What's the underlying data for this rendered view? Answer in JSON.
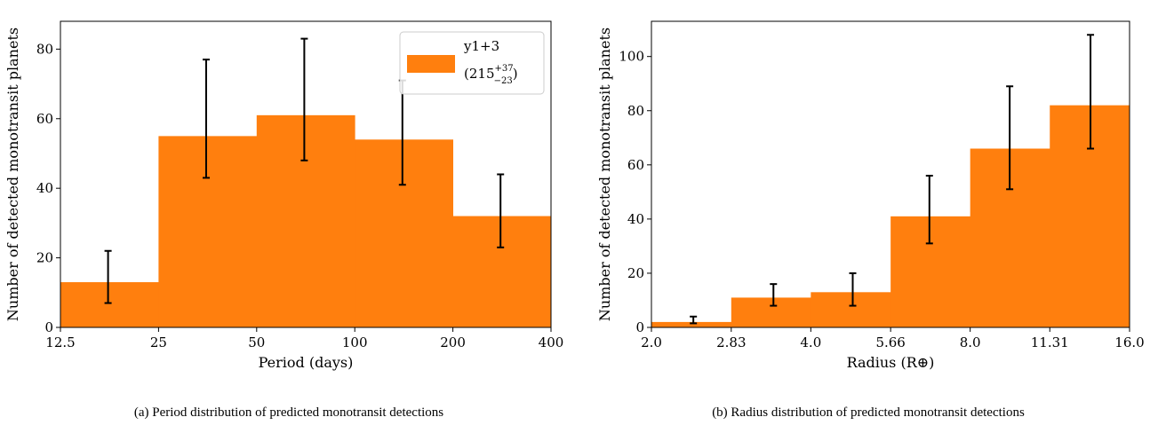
{
  "chart_data": [
    {
      "type": "bar",
      "subtype": "histogram",
      "caption": "(a) Period distribution of predicted monotransit detections",
      "xlabel": "Period (days)",
      "ylabel": "Number of detected monotransit planets",
      "x_scale": "log2",
      "bin_edges": [
        12.5,
        25,
        50,
        100,
        200,
        400
      ],
      "x_tick_labels": [
        "12.5",
        "25",
        "50",
        "100",
        "200",
        "400"
      ],
      "values": [
        13,
        55,
        61,
        54,
        32
      ],
      "error_bars": [
        {
          "x": 17.5,
          "low": 7,
          "high": 22
        },
        {
          "x": 35,
          "low": 43,
          "high": 77
        },
        {
          "x": 70,
          "low": 48,
          "high": 83
        },
        {
          "x": 140,
          "low": 41,
          "high": 71
        },
        {
          "x": 280,
          "low": 23,
          "high": 44
        }
      ],
      "ylim": [
        0,
        88
      ],
      "y_ticks": [
        0,
        20,
        40,
        60,
        80
      ],
      "bar_color": "#ff7f0e",
      "legend": {
        "placement": "top-right",
        "line1": "y1+3",
        "line2_base": "(215",
        "line2_sup": "+37",
        "line2_sub": "−23",
        "line2_end": ")"
      }
    },
    {
      "type": "bar",
      "subtype": "histogram",
      "caption": "(b) Radius distribution of predicted monotransit detections",
      "xlabel": "Radius (R⊕)",
      "ylabel": "Number of detected monotransit planets",
      "x_scale": "log2",
      "bin_edges": [
        2.0,
        2.83,
        4.0,
        5.66,
        8.0,
        11.31,
        16.0
      ],
      "x_tick_labels": [
        "2.0",
        "2.83",
        "4.0",
        "5.66",
        "8.0",
        "11.31",
        "16.0"
      ],
      "values": [
        2,
        11,
        13,
        41,
        66,
        82
      ],
      "error_bars": [
        {
          "x": 2.4,
          "low": 1.5,
          "high": 4
        },
        {
          "x": 3.4,
          "low": 8,
          "high": 16
        },
        {
          "x": 4.8,
          "low": 8,
          "high": 20
        },
        {
          "x": 6.7,
          "low": 31,
          "high": 56
        },
        {
          "x": 9.5,
          "low": 51,
          "high": 89
        },
        {
          "x": 13.5,
          "low": 66,
          "high": 108
        }
      ],
      "ylim": [
        0,
        113
      ],
      "y_ticks": [
        0,
        20,
        40,
        60,
        80,
        100
      ],
      "bar_color": "#ff7f0e"
    }
  ]
}
